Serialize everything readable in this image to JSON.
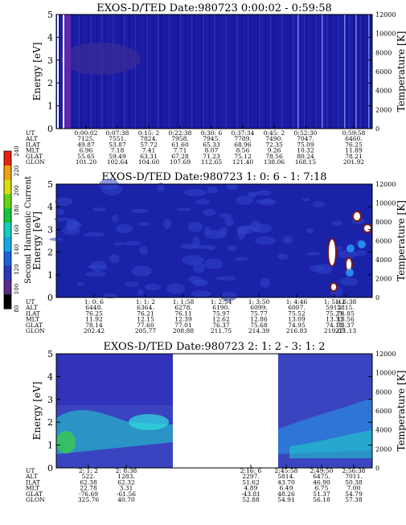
{
  "chart_data": [
    {
      "type": "heatmap",
      "title": "EXOS-D/TED   Date:980723  0:00:02 - 0:59:58",
      "ylabel": "Energy [eV]",
      "y2label": "Temperature [K]",
      "ylim": [
        0,
        5
      ],
      "y2lim": [
        0,
        12000
      ],
      "yticks": [
        "0",
        "1",
        "2",
        "3",
        "4",
        "5"
      ],
      "y2ticks": [
        "0",
        "2000",
        "4000",
        "6000",
        "8000",
        "10000",
        "12000"
      ],
      "orbit_labels": [
        "UT",
        "ALT",
        "ILAT",
        "MLT",
        "GLAT",
        "GLON"
      ],
      "orbit_columns": [
        [
          "0:00:02",
          "7125.",
          "49.87",
          "6.96",
          "55.65",
          "101.20"
        ],
        [
          "0:07:38",
          "7551.",
          "53.87",
          "7.18",
          "59.49",
          "102.64"
        ],
        [
          "0:15: 2",
          "7824.",
          "57.72",
          "7.41",
          "63.31",
          "104.60"
        ],
        [
          "0:22:38",
          "7958.",
          "61.60",
          "7.71",
          "67.28",
          "107.69"
        ],
        [
          "0:30: 6",
          "7945.",
          "65.33",
          "8.07",
          "71.23",
          "112.65"
        ],
        [
          "0:37:34",
          "7789.",
          "68.96",
          "8.56",
          "75.12",
          "121.40"
        ],
        [
          "0:45: 2",
          "7490.",
          "72.35",
          "9.26",
          "78.56",
          "138.06"
        ],
        [
          "0:52:30",
          "7047.",
          "75.09",
          "10.32",
          "80.24",
          "168.15"
        ],
        [
          "0:59:58",
          "6460.",
          "76.25",
          "11.89",
          "78.21",
          "201.92"
        ]
      ],
      "colors": {
        "background": "#1a1aa0",
        "low": "#3a2a9a",
        "mid": "#2a7ad8"
      }
    },
    {
      "type": "heatmap",
      "title": "EXOS-D/TED   Date:980723  1: 0: 6 - 1: 7:18",
      "ylabel": "Energy [eV]",
      "y2label": "Temperature [K]",
      "ylim": [
        0,
        5
      ],
      "y2lim": [
        0,
        12000
      ],
      "yticks": [
        "0",
        "1",
        "2",
        "3",
        "4",
        "5"
      ],
      "y2ticks": [
        "0",
        "2000",
        "4000",
        "6000",
        "8000",
        "10000",
        "12000"
      ],
      "orbit_labels": [
        "UT",
        "ALT",
        "ILAT",
        "MLT",
        "GLAT",
        "GLON"
      ],
      "orbit_columns": [
        [
          "1: 0: 6",
          "6448.",
          "76.25",
          "11.92",
          "78.14",
          "202.42"
        ],
        [
          "1: 1: 2",
          "6364.",
          "76.21",
          "12.15",
          "77.60",
          "205.77"
        ],
        [
          "1: 1:58",
          "6278.",
          "76.11",
          "12.39",
          "77.01",
          "208.88"
        ],
        [
          "1: 2:54",
          "6190.",
          "75.97",
          "12.62",
          "76.37",
          "211.75"
        ],
        [
          "1: 3:50",
          "6099.",
          "75.77",
          "12.86",
          "75.68",
          "214.39"
        ],
        [
          "1: 4:46",
          "6007.",
          "75.52",
          "13.09",
          "74.95",
          "216.83"
        ],
        [
          "1: 5:42",
          "5912.",
          "75.21",
          "13.33",
          "74.18",
          "219.07"
        ],
        [
          "1: 6:38",
          "5815.",
          "74.85",
          "13.56",
          "73.37",
          "221.13"
        ]
      ],
      "colors": {
        "background": "#1a22a8",
        "cell": "#3244c8"
      }
    },
    {
      "type": "heatmap",
      "title": "EXOS-D/TED   Date:980723  2: 1: 2 - 3: 1: 2",
      "ylabel": "Energy [eV]",
      "y2label": "Temperature [K]",
      "ylim": [
        0,
        5
      ],
      "y2lim": [
        0,
        12000
      ],
      "yticks": [
        "0",
        "1",
        "2",
        "3",
        "4",
        "5"
      ],
      "y2ticks": [
        "0",
        "2000",
        "4000",
        "6000",
        "8000",
        "10000",
        "12000"
      ],
      "orbit_labels": [
        "UT",
        "ALT",
        "ILAT",
        "MLT",
        "GLAT",
        "GLON"
      ],
      "orbit_columns": [
        [
          "2: 1: 2",
          "522.",
          "62.38",
          "22.78",
          "-76.69",
          "325.76"
        ],
        [
          "2: 8:38",
          "1283.",
          "62.32",
          "3.31",
          "-61.56",
          "40.70"
        ],
        [
          "2:16: 6",
          "2297.",
          "51.62",
          "4.89",
          "-43.81",
          "52.88"
        ],
        [
          "2:45:58",
          "5814.",
          "43.70",
          "6.49",
          "48.26",
          "54.91"
        ],
        [
          "2:49:50",
          "6475.",
          "46.90",
          "6.75",
          "51.37",
          "56.18"
        ],
        [
          "2:56:38",
          "7011.",
          "50.38",
          "7.00",
          "54.79",
          "57.38"
        ]
      ],
      "colors": {
        "background": "#2840c8",
        "band": "#22c8c8"
      }
    }
  ],
  "colorbar": {
    "label": "Second Harmonic Current",
    "ticks": [
      "80",
      "100",
      "120",
      "140",
      "160",
      "180",
      "200",
      "220",
      "240"
    ],
    "colors": [
      "#000000",
      "#5a2a8a",
      "#2a3ab8",
      "#1a60e0",
      "#10a8e8",
      "#10d0c0",
      "#10c840",
      "#60d810",
      "#d8e010",
      "#f0a010",
      "#e82010"
    ]
  }
}
